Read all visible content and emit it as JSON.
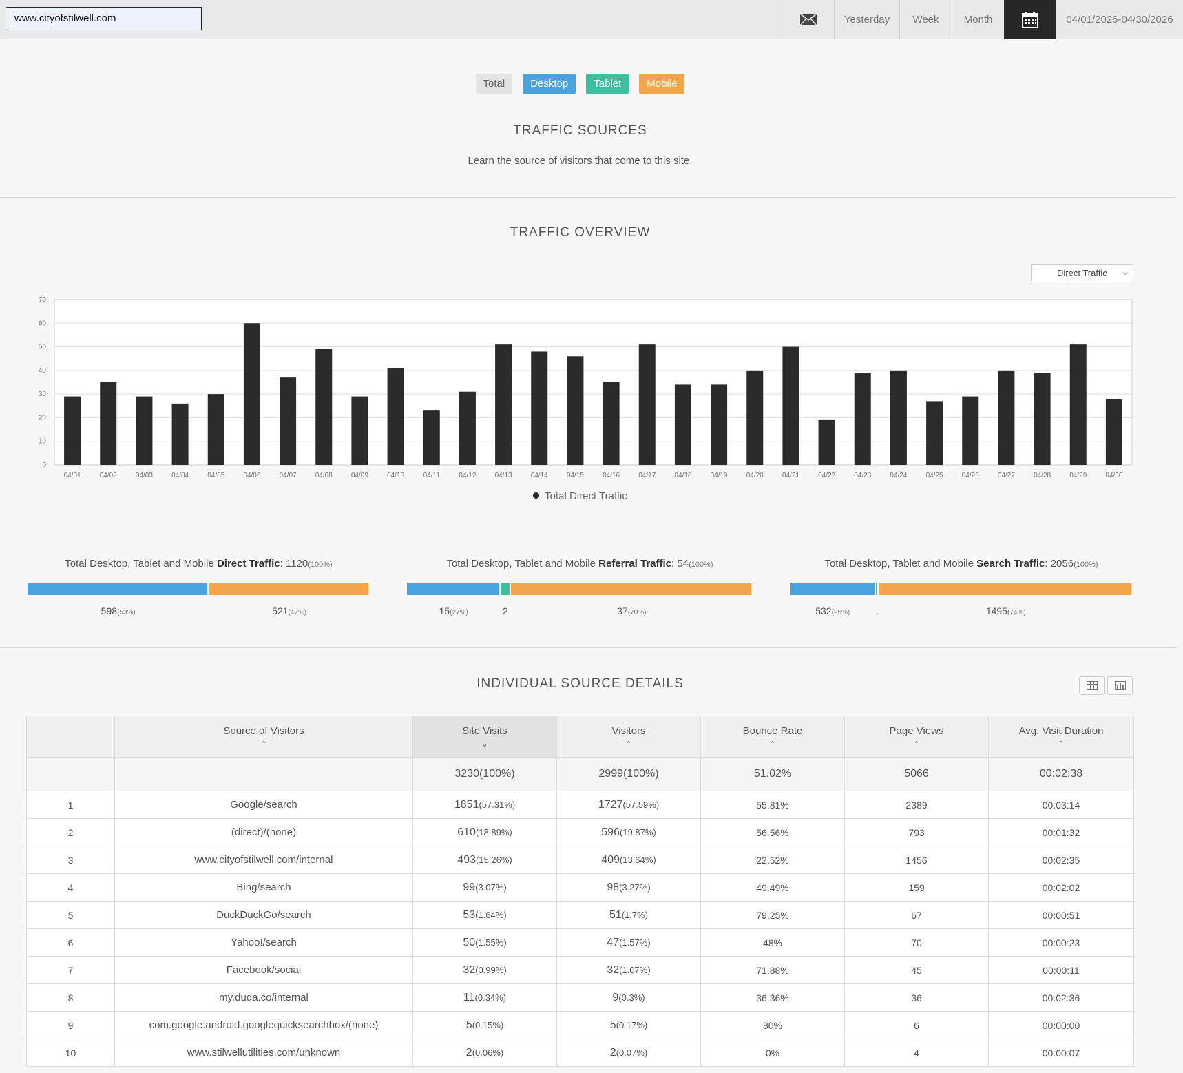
{
  "topbar": {
    "site": "www.cityofstilwell.com",
    "icons": {
      "mail": "envelope-icon",
      "calendar": "calendar-icon"
    },
    "periods": [
      "Yesterday",
      "Week",
      "Month"
    ],
    "date_range": "04/01/2026-04/30/2026"
  },
  "filters": {
    "total": "Total",
    "desktop": "Desktop",
    "tablet": "Tablet",
    "mobile": "Mobile"
  },
  "colors": {
    "desktop": "#4aa3de",
    "tablet": "#3cc0a0",
    "mobile": "#f2a649",
    "bars": "#2b2b2b"
  },
  "sources": {
    "title": "TRAFFIC  SOURCES",
    "subtitle": "Learn the source of visitors that come to this site."
  },
  "overview": {
    "title": "TRAFFIC  OVERVIEW",
    "dropdown": "Direct Traffic",
    "legend": "Total Direct Traffic"
  },
  "chart_data": {
    "type": "bar",
    "categories": [
      "04/01",
      "04/02",
      "04/03",
      "04/04",
      "04/05",
      "04/06",
      "04/07",
      "04/08",
      "04/09",
      "04/10",
      "04/11",
      "04/12",
      "04/13",
      "04/14",
      "04/15",
      "04/16",
      "04/17",
      "04/18",
      "04/19",
      "04/20",
      "04/21",
      "04/22",
      "04/23",
      "04/24",
      "04/25",
      "04/26",
      "04/27",
      "04/28",
      "04/29",
      "04/30"
    ],
    "values": [
      29,
      35,
      29,
      26,
      30,
      60,
      37,
      49,
      29,
      41,
      23,
      31,
      51,
      48,
      46,
      35,
      51,
      34,
      34,
      40,
      50,
      19,
      39,
      40,
      27,
      29,
      40,
      39,
      51,
      28
    ],
    "ylim": [
      0,
      70
    ],
    "yticks": [
      0,
      10,
      20,
      30,
      40,
      50,
      60,
      70
    ],
    "series": [
      {
        "name": "Total Direct Traffic",
        "values": [
          29,
          35,
          29,
          26,
          30,
          60,
          37,
          49,
          29,
          41,
          23,
          31,
          51,
          48,
          46,
          35,
          51,
          34,
          34,
          40,
          50,
          19,
          39,
          40,
          27,
          29,
          40,
          39,
          51,
          28
        ]
      }
    ],
    "grid": true,
    "legend": "bottom-center"
  },
  "summaries": [
    {
      "prefix": "Total Desktop, Tablet and Mobile ",
      "label": "Direct Traffic",
      "value": ": 1120",
      "pct": "(100%)",
      "segments": [
        {
          "device": "desktop",
          "share": 0.53,
          "value": "598",
          "pct": "(53%)"
        },
        {
          "device": "tablet",
          "share": 0.0,
          "value": "",
          "pct": ""
        },
        {
          "device": "mobile",
          "share": 0.47,
          "value": "521",
          "pct": "(47%)"
        }
      ]
    },
    {
      "prefix": "Total Desktop, Tablet and Mobile ",
      "label": "Referral Traffic",
      "value": ": 54",
      "pct": "(100%)",
      "segments": [
        {
          "device": "desktop",
          "share": 0.27,
          "value": "15",
          "pct": "(27%)"
        },
        {
          "device": "tablet",
          "share": 0.03,
          "value": "2",
          "pct": ""
        },
        {
          "device": "mobile",
          "share": 0.7,
          "value": "37",
          "pct": "(70%)"
        }
      ]
    },
    {
      "prefix": "Total Desktop, Tablet and Mobile ",
      "label": "Search Traffic",
      "value": ": 2056",
      "pct": "(100%)",
      "segments": [
        {
          "device": "desktop",
          "share": 0.25,
          "value": "532",
          "pct": "(25%)"
        },
        {
          "device": "tablet",
          "share": 0.01,
          "value": ".",
          "pct": ""
        },
        {
          "device": "mobile",
          "share": 0.74,
          "value": "1495",
          "pct": "(74%)"
        }
      ]
    }
  ],
  "details": {
    "title": "INDIVIDUAL  SOURCE  DETAILS",
    "view_icons": [
      "table-view-icon",
      "chart-view-icon"
    ],
    "columns": [
      "",
      "Source of Visitors",
      "Site Visits",
      "Visitors",
      "Bounce Rate",
      "Page Views",
      "Avg. Visit Duration"
    ],
    "sort_arrows": [
      "",
      "▲",
      "▼",
      "▲",
      "▲",
      "▲",
      "▲"
    ],
    "totals": {
      "site_visits": "3230",
      "site_visits_pct": "(100%)",
      "visitors": "2999",
      "visitors_pct": "(100%)",
      "bounce_rate": "51.02%",
      "page_views": "5066",
      "duration": "00:02:38"
    },
    "rows": [
      {
        "rank": "1",
        "source": "Google/search",
        "visits": "1851",
        "visits_pct": "(57.31%)",
        "visitors": "1727",
        "visitors_pct": "(57.59%)",
        "bounce": "55.81%",
        "views": "2389",
        "duration": "00:03:14"
      },
      {
        "rank": "2",
        "source": "(direct)/(none)",
        "visits": "610",
        "visits_pct": "(18.89%)",
        "visitors": "596",
        "visitors_pct": "(19.87%)",
        "bounce": "56.56%",
        "views": "793",
        "duration": "00:01:32"
      },
      {
        "rank": "3",
        "source": "www.cityofstilwell.com/internal",
        "visits": "493",
        "visits_pct": "(15.26%)",
        "visitors": "409",
        "visitors_pct": "(13.64%)",
        "bounce": "22.52%",
        "views": "1456",
        "duration": "00:02:35"
      },
      {
        "rank": "4",
        "source": "Bing/search",
        "visits": "99",
        "visits_pct": "(3.07%)",
        "visitors": "98",
        "visitors_pct": "(3.27%)",
        "bounce": "49.49%",
        "views": "159",
        "duration": "00:02:02"
      },
      {
        "rank": "5",
        "source": "DuckDuckGo/search",
        "visits": "53",
        "visits_pct": "(1.64%)",
        "visitors": "51",
        "visitors_pct": "(1.7%)",
        "bounce": "79.25%",
        "views": "67",
        "duration": "00:00:51"
      },
      {
        "rank": "6",
        "source": "Yahoo!/search",
        "visits": "50",
        "visits_pct": "(1.55%)",
        "visitors": "47",
        "visitors_pct": "(1.57%)",
        "bounce": "48%",
        "views": "70",
        "duration": "00:00:23"
      },
      {
        "rank": "7",
        "source": "Facebook/social",
        "visits": "32",
        "visits_pct": "(0.99%)",
        "visitors": "32",
        "visitors_pct": "(1.07%)",
        "bounce": "71.88%",
        "views": "45",
        "duration": "00:00:11"
      },
      {
        "rank": "8",
        "source": "my.duda.co/internal",
        "visits": "11",
        "visits_pct": "(0.34%)",
        "visitors": "9",
        "visitors_pct": "(0.3%)",
        "bounce": "36.36%",
        "views": "36",
        "duration": "00:02:36"
      },
      {
        "rank": "9",
        "source": "com.google.android.googlequicksearchbox/(none)",
        "visits": "5",
        "visits_pct": "(0.15%)",
        "visitors": "5",
        "visitors_pct": "(0.17%)",
        "bounce": "80%",
        "views": "6",
        "duration": "00:00:00"
      },
      {
        "rank": "10",
        "source": "www.stilwellutilities.com/unknown",
        "visits": "2",
        "visits_pct": "(0.06%)",
        "visitors": "2",
        "visitors_pct": "(0.07%)",
        "bounce": "0%",
        "views": "4",
        "duration": "00:00:07"
      }
    ]
  }
}
